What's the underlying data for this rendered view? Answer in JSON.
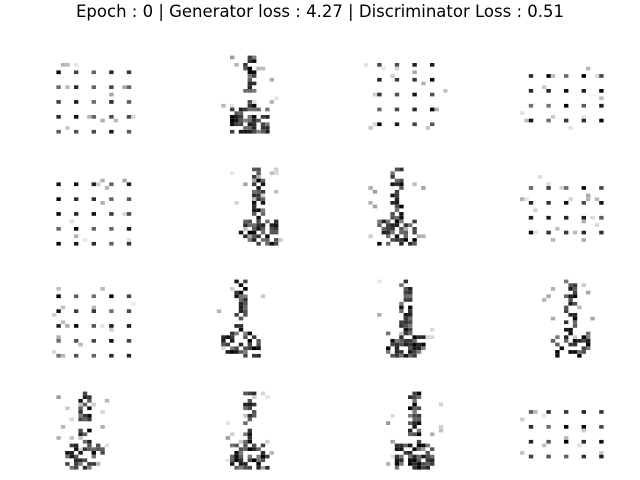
{
  "figure": {
    "title": "Epoch : 0 | Generator loss : 4.27 | Discriminator Loss : 0.51"
  },
  "grid": {
    "rows": 4,
    "cols": 4,
    "panel_count": 16
  },
  "colors": {
    "background": "#ffffff",
    "ink": "#000000"
  }
}
